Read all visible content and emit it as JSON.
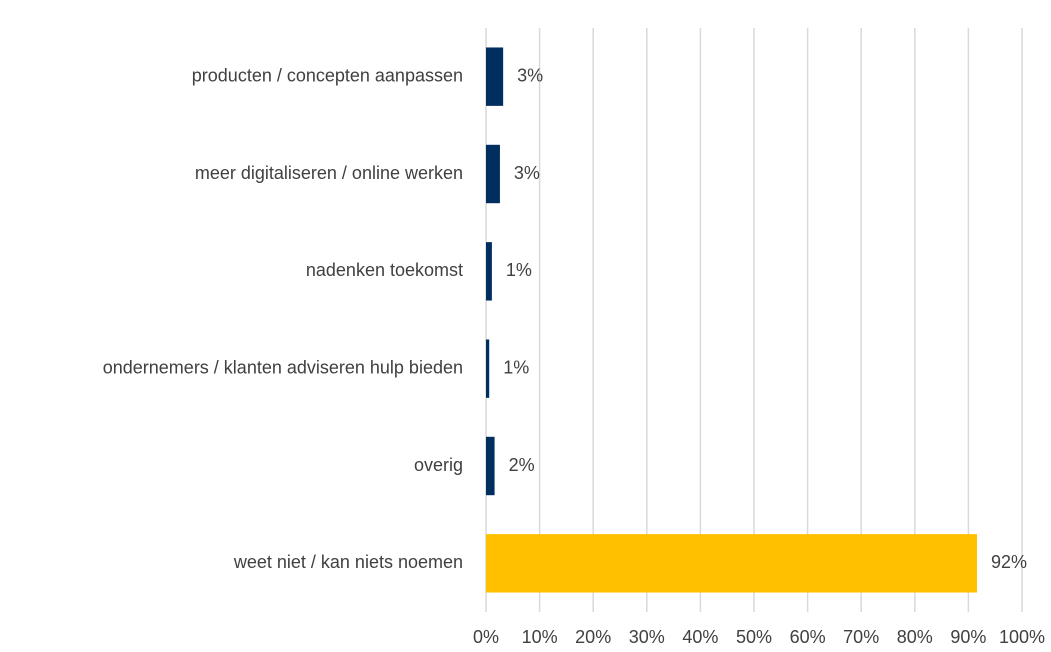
{
  "chart_data": {
    "type": "barh",
    "categories": [
      "producten / concepten aanpassen",
      "meer digitaliseren / online werken",
      "nadenken toekomst",
      "ondernemers / klanten adviseren hulp bieden",
      "overig",
      "weet niet / kan niets noemen"
    ],
    "values": [
      3.2,
      2.6,
      1.1,
      0.6,
      1.6,
      91.6
    ],
    "value_labels": [
      "3%",
      "3%",
      "1%",
      "1%",
      "2%",
      "92%"
    ],
    "colors": [
      "#002f5f",
      "#002f5f",
      "#002f5f",
      "#002f5f",
      "#002f5f",
      "#ffc000"
    ],
    "xlim": [
      0,
      100
    ],
    "xticks": [
      {
        "value": 0,
        "label": "0%"
      },
      {
        "value": 10,
        "label": "10%"
      },
      {
        "value": 20,
        "label": "20%"
      },
      {
        "value": 30,
        "label": "30%"
      },
      {
        "value": 40,
        "label": "40%"
      },
      {
        "value": 50,
        "label": "50%"
      },
      {
        "value": 60,
        "label": "60%"
      },
      {
        "value": 70,
        "label": "70%"
      },
      {
        "value": 80,
        "label": "80%"
      },
      {
        "value": 90,
        "label": "90%"
      },
      {
        "value": 100,
        "label": "100%"
      }
    ],
    "grid": true
  }
}
